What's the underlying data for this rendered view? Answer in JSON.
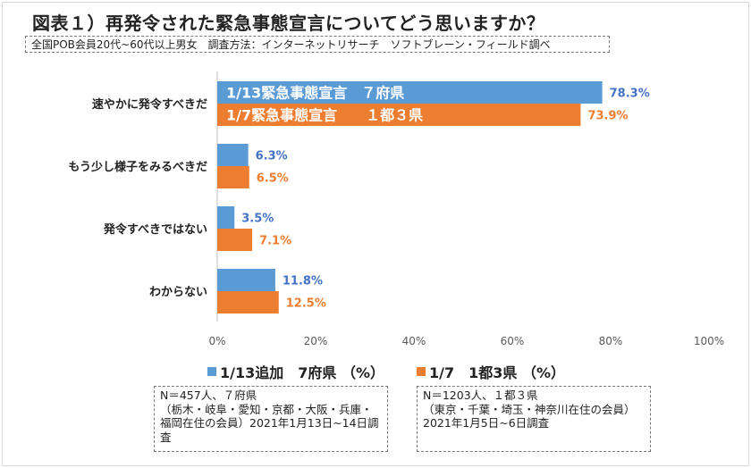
{
  "title": "図表１）再発令された緊急事態宣言についてどう思いますか？",
  "subtitle": "全国POB会員20代~60代以上男女　調査方法：インターネットリサーチ　ソフトブレーン・フィールド調べ",
  "chart_data": {
    "type": "bar",
    "orientation": "horizontal",
    "categories": [
      "速やかに発令すべきだ",
      "もう少し様子をみるべきだ",
      "発令すべきではない",
      "わからない"
    ],
    "series": [
      {
        "name": "1/13追加　7府県 （%）",
        "values": [
          78.3,
          6.3,
          3.5,
          11.8
        ],
        "color": "#5b9bd5",
        "label_color": "#4472c4",
        "bar_annotation": "1/13緊急事態宣言　７府県"
      },
      {
        "name": "1/7　1都3県 （%）",
        "values": [
          73.9,
          6.5,
          7.1,
          12.5
        ],
        "color": "#ed7d31",
        "label_color": "#ed7d31",
        "bar_annotation": "1/7緊急事態宣言　　１都３県"
      }
    ],
    "xlim": [
      0,
      100
    ],
    "xticks": [
      "0%",
      "20%",
      "40%",
      "60%",
      "80%",
      "100%"
    ],
    "grid": false,
    "legend_position": "bottom"
  },
  "notes": [
    "N＝457人、７府県\n（栃木・岐阜・愛知・京都・大阪・兵庫・福岡在住の会員）2021年1月13日~14日調査",
    "N＝1203人、１都３県\n（東京・千葉・埼玉・神奈川在住の会員）2021年1月5日~6日調査"
  ]
}
